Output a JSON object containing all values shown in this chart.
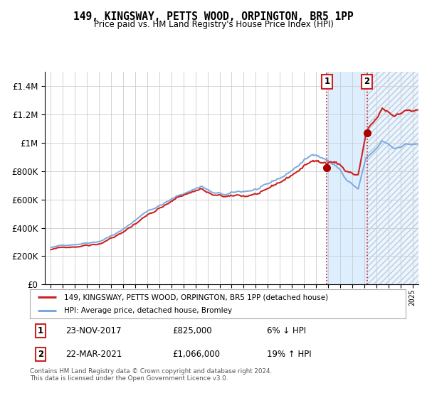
{
  "title": "149, KINGSWAY, PETTS WOOD, ORPINGTON, BR5 1PP",
  "subtitle": "Price paid vs. HM Land Registry's House Price Index (HPI)",
  "legend_line1": "149, KINGSWAY, PETTS WOOD, ORPINGTON, BR5 1PP (detached house)",
  "legend_line2": "HPI: Average price, detached house, Bromley",
  "transaction1_date": "23-NOV-2017",
  "transaction1_price": "£825,000",
  "transaction1_hpi": "6% ↓ HPI",
  "transaction2_date": "22-MAR-2021",
  "transaction2_price": "£1,066,000",
  "transaction2_hpi": "19% ↑ HPI",
  "footer": "Contains HM Land Registry data © Crown copyright and database right 2024.\nThis data is licensed under the Open Government Licence v3.0.",
  "hpi_color": "#7aaadd",
  "price_color": "#cc2222",
  "marker_color": "#aa0000",
  "vline_color": "#cc2222",
  "shade_color": "#ddeeff",
  "grid_color": "#cccccc",
  "bg_color": "#ffffff",
  "yticks": [
    0,
    200000,
    400000,
    600000,
    800000,
    1000000,
    1200000,
    1400000
  ],
  "transaction1_x": 2017.9,
  "transaction2_x": 2021.23,
  "transaction1_y": 825000,
  "transaction2_y": 1066000,
  "xlim_left": 1994.5,
  "xlim_right": 2025.5,
  "ylim_top": 1500000
}
